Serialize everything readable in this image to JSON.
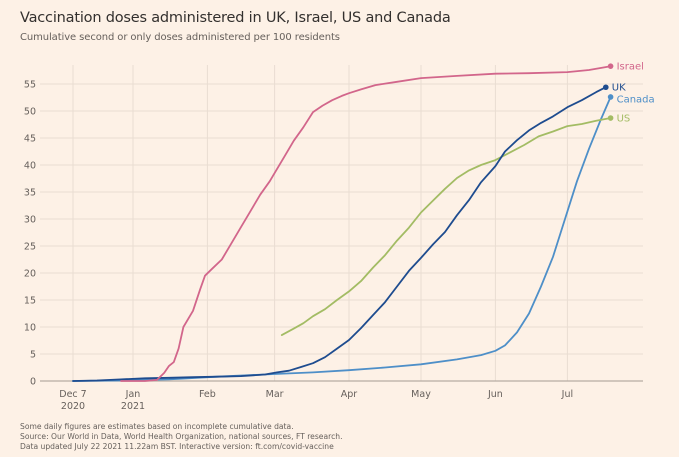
{
  "chart_data": {
    "type": "line",
    "title": "Vaccination doses administered in UK, Israel, US and Canada",
    "subtitle": "Cumulative second or only doses administered per 100 residents",
    "xlabel": "",
    "ylabel": "",
    "x_unit": "days since 2020-12-07",
    "xlim": [
      0,
      230
    ],
    "ylim": [
      0,
      58
    ],
    "grid": true,
    "y_ticks": [
      0,
      5,
      10,
      15,
      20,
      25,
      30,
      35,
      40,
      45,
      50,
      55
    ],
    "x_ticks": [
      {
        "day": 0,
        "label": "Dec 7",
        "sublabel": "2020"
      },
      {
        "day": 25,
        "label": "Jan",
        "sublabel": "2021"
      },
      {
        "day": 56,
        "label": "Feb",
        "sublabel": ""
      },
      {
        "day": 84,
        "label": "Mar",
        "sublabel": ""
      },
      {
        "day": 115,
        "label": "Apr",
        "sublabel": ""
      },
      {
        "day": 145,
        "label": "May",
        "sublabel": ""
      },
      {
        "day": 176,
        "label": "Jun",
        "sublabel": ""
      },
      {
        "day": 206,
        "label": "Jul",
        "sublabel": ""
      }
    ],
    "legend": "end-of-line labels",
    "series": [
      {
        "name": "Israel",
        "color": "#d2668b",
        "x": [
          20,
          30,
          35,
          38,
          40,
          42,
          44,
          46,
          50,
          53,
          55,
          58,
          62,
          66,
          70,
          74,
          78,
          82,
          84,
          88,
          92,
          96,
          100,
          104,
          108,
          112,
          115,
          120,
          126,
          135,
          145,
          160,
          176,
          190,
          206,
          215,
          224
        ],
        "y": [
          0,
          0,
          0.2,
          1.5,
          2.8,
          3.5,
          6,
          10,
          13,
          17,
          19.5,
          20.8,
          22.5,
          25.5,
          28.5,
          31.5,
          34.5,
          37,
          38.5,
          41.5,
          44.5,
          47,
          49.8,
          51,
          52,
          52.8,
          53.3,
          54,
          54.8,
          55.4,
          56.1,
          56.5,
          56.9,
          57,
          57.2,
          57.6,
          58.3
        ]
      },
      {
        "name": "UK",
        "color": "#1e4c8f",
        "x": [
          0,
          10,
          20,
          30,
          40,
          50,
          60,
          70,
          80,
          85,
          90,
          95,
          100,
          105,
          110,
          115,
          120,
          125,
          130,
          135,
          140,
          145,
          150,
          155,
          160,
          165,
          170,
          176,
          180,
          185,
          190,
          195,
          200,
          206,
          212,
          218,
          222
        ],
        "y": [
          0,
          0.1,
          0.3,
          0.5,
          0.6,
          0.7,
          0.8,
          0.9,
          1.2,
          1.6,
          1.9,
          2.6,
          3.3,
          4.4,
          6,
          7.6,
          9.8,
          12.2,
          14.6,
          17.5,
          20.4,
          22.8,
          25.3,
          27.6,
          30.7,
          33.5,
          36.8,
          39.8,
          42.5,
          44.6,
          46.4,
          47.8,
          49,
          50.7,
          52,
          53.5,
          54.4
        ]
      },
      {
        "name": "Canada",
        "color": "#4e8fc8",
        "x": [
          0,
          20,
          40,
          60,
          84,
          100,
          115,
          130,
          145,
          160,
          170,
          176,
          180,
          185,
          190,
          195,
          200,
          205,
          210,
          215,
          220,
          224
        ],
        "y": [
          0,
          0.1,
          0.3,
          0.8,
          1.3,
          1.6,
          2,
          2.5,
          3.1,
          4,
          4.8,
          5.6,
          6.6,
          9,
          12.5,
          17.5,
          23,
          30,
          37,
          43,
          48.5,
          52.6
        ]
      },
      {
        "name": "US",
        "color": "#a3bc64",
        "x": [
          87,
          92,
          96,
          100,
          105,
          110,
          115,
          120,
          125,
          130,
          135,
          140,
          145,
          150,
          155,
          160,
          165,
          170,
          176,
          182,
          188,
          194,
          200,
          206,
          212,
          218,
          224
        ],
        "y": [
          8.5,
          9.7,
          10.7,
          12,
          13.3,
          15,
          16.6,
          18.5,
          21,
          23.3,
          26,
          28.4,
          31.2,
          33.4,
          35.6,
          37.6,
          39,
          40,
          40.9,
          42.3,
          43.7,
          45.3,
          46.2,
          47.2,
          47.6,
          48.2,
          48.7
        ]
      }
    ]
  },
  "footnote": [
    "Some daily figures are estimates based on incomplete cumulative data.",
    "Source: Our World in Data, World Health Organization, national sources, FT research.",
    "Data updated July 22 2021 11.22am BST. Interactive version: ft.com/covid-vaccine"
  ]
}
